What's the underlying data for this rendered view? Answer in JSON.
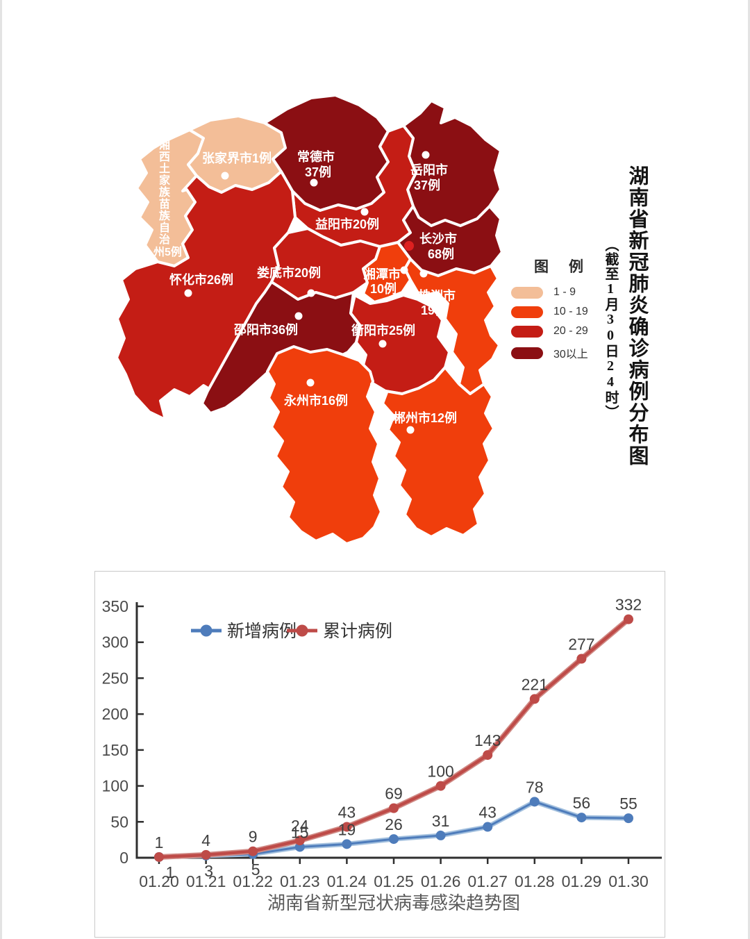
{
  "map_section": {
    "title_vertical": "湖南省新冠肺炎确诊病例分布图",
    "subtitle_vertical": "（截至1月30日24时）",
    "colors": {
      "c1": "#F3BE98",
      "c2": "#F03E0C",
      "c3": "#C41D15",
      "c4": "#8B0F13",
      "capital_dot": "#DE2020",
      "border": "#FFFFFF"
    },
    "legend": {
      "title": "图　例",
      "items": [
        {
          "label": "1 - 9",
          "cat": "c1"
        },
        {
          "label": "10 - 19",
          "cat": "c2"
        },
        {
          "label": "20 - 29",
          "cat": "c3"
        },
        {
          "label": "30以上",
          "cat": "c4"
        }
      ]
    },
    "regions": [
      {
        "id": "xiangxi",
        "line1": "湘西土家族苗族自治",
        "line2": "州5例",
        "cat": "c1"
      },
      {
        "id": "zhangjiajie",
        "line1": "张家界市1例",
        "cat": "c1"
      },
      {
        "id": "changde",
        "line1": "常德市",
        "line2": "37例",
        "cat": "c4"
      },
      {
        "id": "yueyang",
        "line1": "岳阳市",
        "line2": "37例",
        "cat": "c4"
      },
      {
        "id": "yiyang",
        "line1": "益阳市20例",
        "cat": "c3"
      },
      {
        "id": "changsha",
        "line1": "长沙市",
        "line2": "68例",
        "cat": "c4"
      },
      {
        "id": "huaihua",
        "line1": "怀化市26例",
        "cat": "c3"
      },
      {
        "id": "loudi",
        "line1": "娄底市20例",
        "cat": "c3"
      },
      {
        "id": "xiangtan",
        "line1": "湘潭市",
        "line2": "10例",
        "cat": "c2"
      },
      {
        "id": "zhuzhou",
        "line1": "株洲市",
        "line2": "19例",
        "cat": "c2"
      },
      {
        "id": "shaoyang",
        "line1": "邵阳市36例",
        "cat": "c4"
      },
      {
        "id": "hengyang",
        "line1": "衡阳市25例",
        "cat": "c3"
      },
      {
        "id": "yongzhou",
        "line1": "永州市16例",
        "cat": "c2"
      },
      {
        "id": "chenzhou",
        "line1": "郴州市12例",
        "cat": "c2"
      }
    ]
  },
  "chart_data": {
    "type": "line",
    "title": "湖南省新型冠状病毒感染趋势图",
    "categories": [
      "01.20",
      "01.21",
      "01.22",
      "01.23",
      "01.24",
      "01.25",
      "01.26",
      "01.27",
      "01.28",
      "01.29",
      "01.30"
    ],
    "series": [
      {
        "name": "新增病例",
        "color": "#4E7CBB",
        "halo": "#A3C0DE",
        "values": [
          1,
          3,
          5,
          15,
          19,
          26,
          31,
          43,
          78,
          56,
          55
        ]
      },
      {
        "name": "累计病例",
        "color": "#BE4B48",
        "halo": "#D08A85",
        "values": [
          1,
          4,
          9,
          24,
          43,
          69,
          100,
          143,
          221,
          277,
          332
        ]
      }
    ],
    "ylim": [
      0,
      350
    ],
    "yticks": [
      0,
      50,
      100,
      150,
      200,
      250,
      300,
      350
    ],
    "legend_position": "top-left-inside",
    "grid": false,
    "label_color": "#3f3f3f",
    "axis_color": "#2f2f2f",
    "tick_label_color": "#4a4a4a",
    "title_color": "#595959"
  }
}
